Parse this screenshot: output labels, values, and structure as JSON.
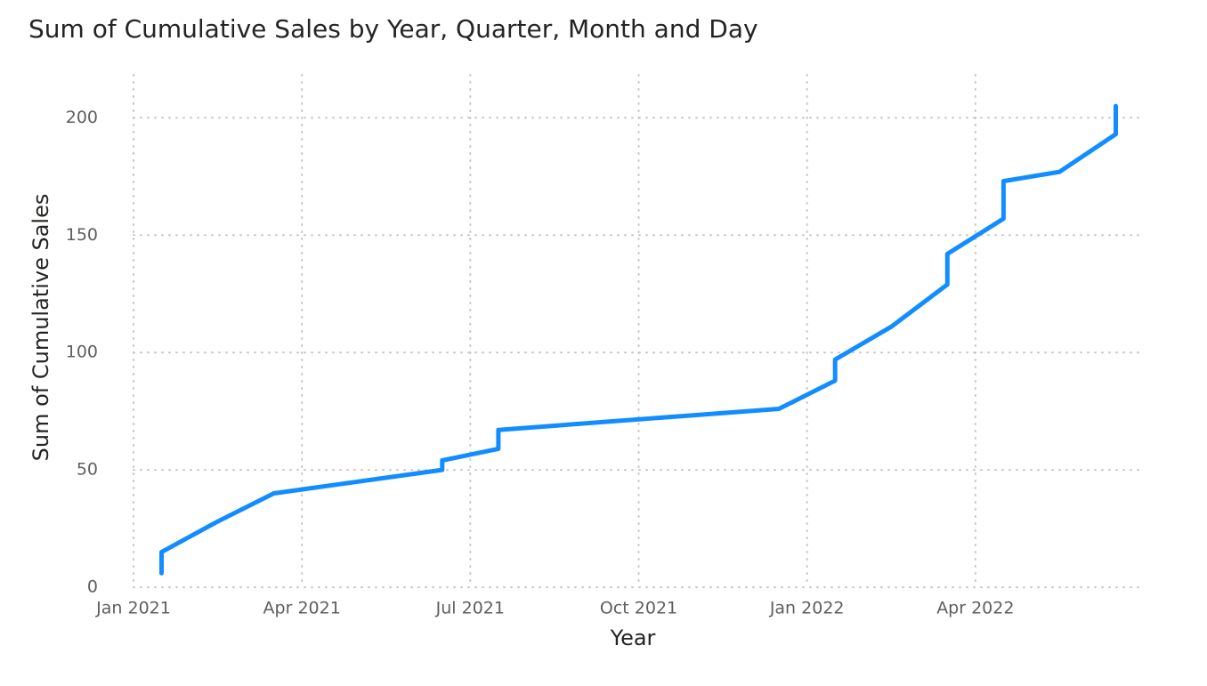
{
  "chart_data": {
    "type": "line",
    "title": "Sum of Cumulative Sales by Year, Quarter, Month and Day",
    "x_label": "Year",
    "y_label": "Sum of Cumulative Sales",
    "x": [
      "2021-01",
      "2021-01",
      "2021-02",
      "2021-03",
      "2021-06",
      "2021-06",
      "2021-07",
      "2021-07",
      "2021-07",
      "2021-12",
      "2022-01",
      "2022-01",
      "2022-02",
      "2022-03",
      "2022-03",
      "2022-04",
      "2022-04",
      "2022-05",
      "2022-06",
      "2022-06"
    ],
    "series": [
      {
        "name": "Sum of Cumulative Sales",
        "color": "#118DFF",
        "values": [
          6,
          15,
          28,
          40,
          50,
          54,
          59,
          63,
          67,
          76,
          88,
          97,
          111,
          129,
          142,
          157,
          173,
          177,
          193,
          205
        ]
      }
    ],
    "xlim": [
      "2021-01",
      "2022-07"
    ],
    "xticks": [
      {
        "value": "2021-01",
        "label": "Jan 2021"
      },
      {
        "value": "2021-04",
        "label": "Apr 2021"
      },
      {
        "value": "2021-07",
        "label": "Jul 2021"
      },
      {
        "value": "2021-10",
        "label": "Oct 2021"
      },
      {
        "value": "2022-01",
        "label": "Jan 2022"
      },
      {
        "value": "2022-04",
        "label": "Apr 2022"
      }
    ],
    "ylim": [
      0,
      210
    ],
    "yticks": [
      0,
      50,
      100,
      150,
      200
    ],
    "grid": true
  }
}
